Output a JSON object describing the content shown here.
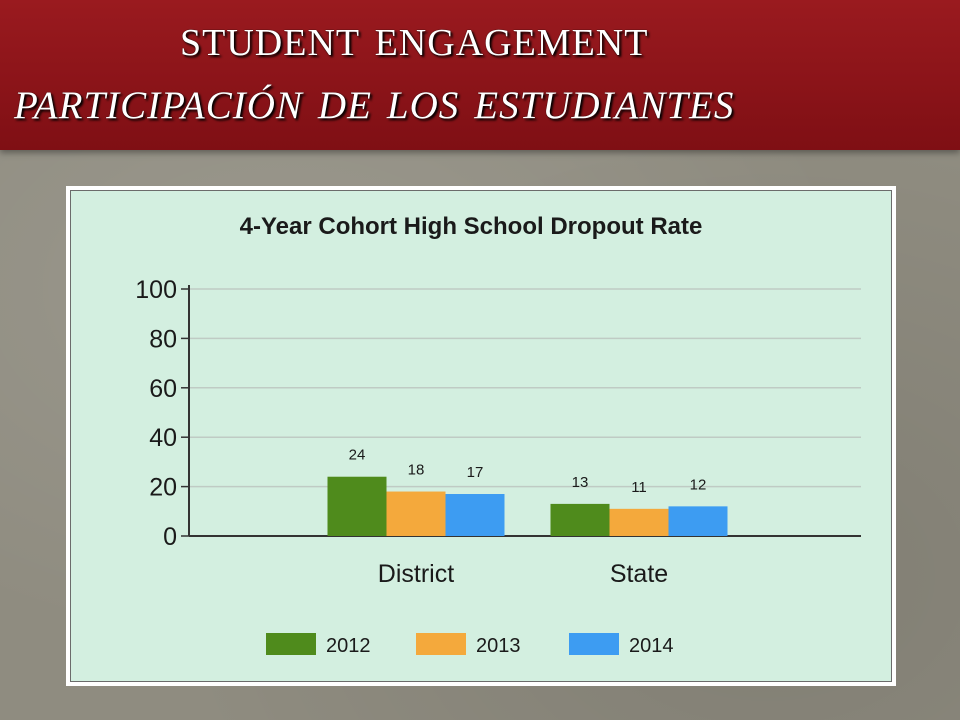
{
  "slide": {
    "title_line1": "Student Engagement",
    "title_line2": "Participación de los Estudiantes"
  },
  "colors": {
    "title_band": "#8d1318",
    "chart_bg": "#d3efe0",
    "series_2012": "#4f8b1c",
    "series_2013": "#f4a93c",
    "series_2014": "#3d9cf2"
  },
  "chart_data": {
    "type": "bar",
    "title": "4-Year Cohort High School Dropout Rate",
    "categories": [
      "District",
      "State"
    ],
    "series": [
      {
        "name": "2012",
        "values": [
          24,
          13
        ],
        "color": "#4f8b1c"
      },
      {
        "name": "2013",
        "values": [
          18,
          11
        ],
        "color": "#f4a93c"
      },
      {
        "name": "2014",
        "values": [
          17,
          12
        ],
        "color": "#3d9cf2"
      }
    ],
    "ylim": [
      0,
      100
    ],
    "yticks": [
      0,
      20,
      40,
      60,
      80,
      100
    ],
    "grid": true,
    "legend_position": "bottom",
    "xlabel": "",
    "ylabel": ""
  }
}
